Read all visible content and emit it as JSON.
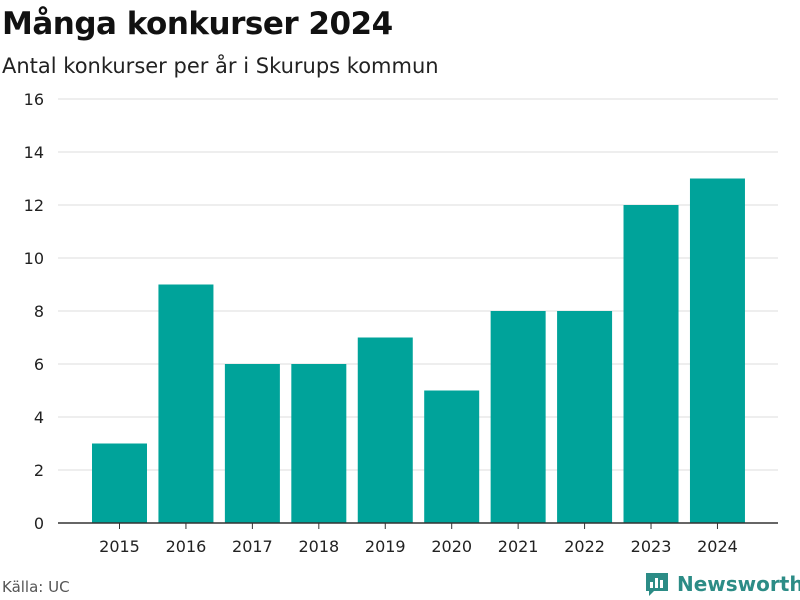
{
  "header": {
    "title": "Många konkurser 2024",
    "subtitle": "Antal konkurser per år i Skurups kommun"
  },
  "footer": {
    "source": "Källa: UC",
    "brand": "Newsworthy"
  },
  "colors": {
    "bar": "#00a39a",
    "grid": "#dddddd",
    "axis": "#333333",
    "brand": "#2c8c86"
  },
  "chart_data": {
    "type": "bar",
    "categories": [
      "2015",
      "2016",
      "2017",
      "2018",
      "2019",
      "2020",
      "2021",
      "2022",
      "2023",
      "2024"
    ],
    "series": [
      {
        "values": [
          3,
          9,
          6,
          6,
          7,
          5,
          8,
          8,
          12,
          13
        ]
      }
    ],
    "ylim": [
      0,
      16
    ],
    "yticks": [
      0,
      2,
      4,
      6,
      8,
      10,
      12,
      14,
      16
    ],
    "grid": true,
    "legend": "none"
  }
}
